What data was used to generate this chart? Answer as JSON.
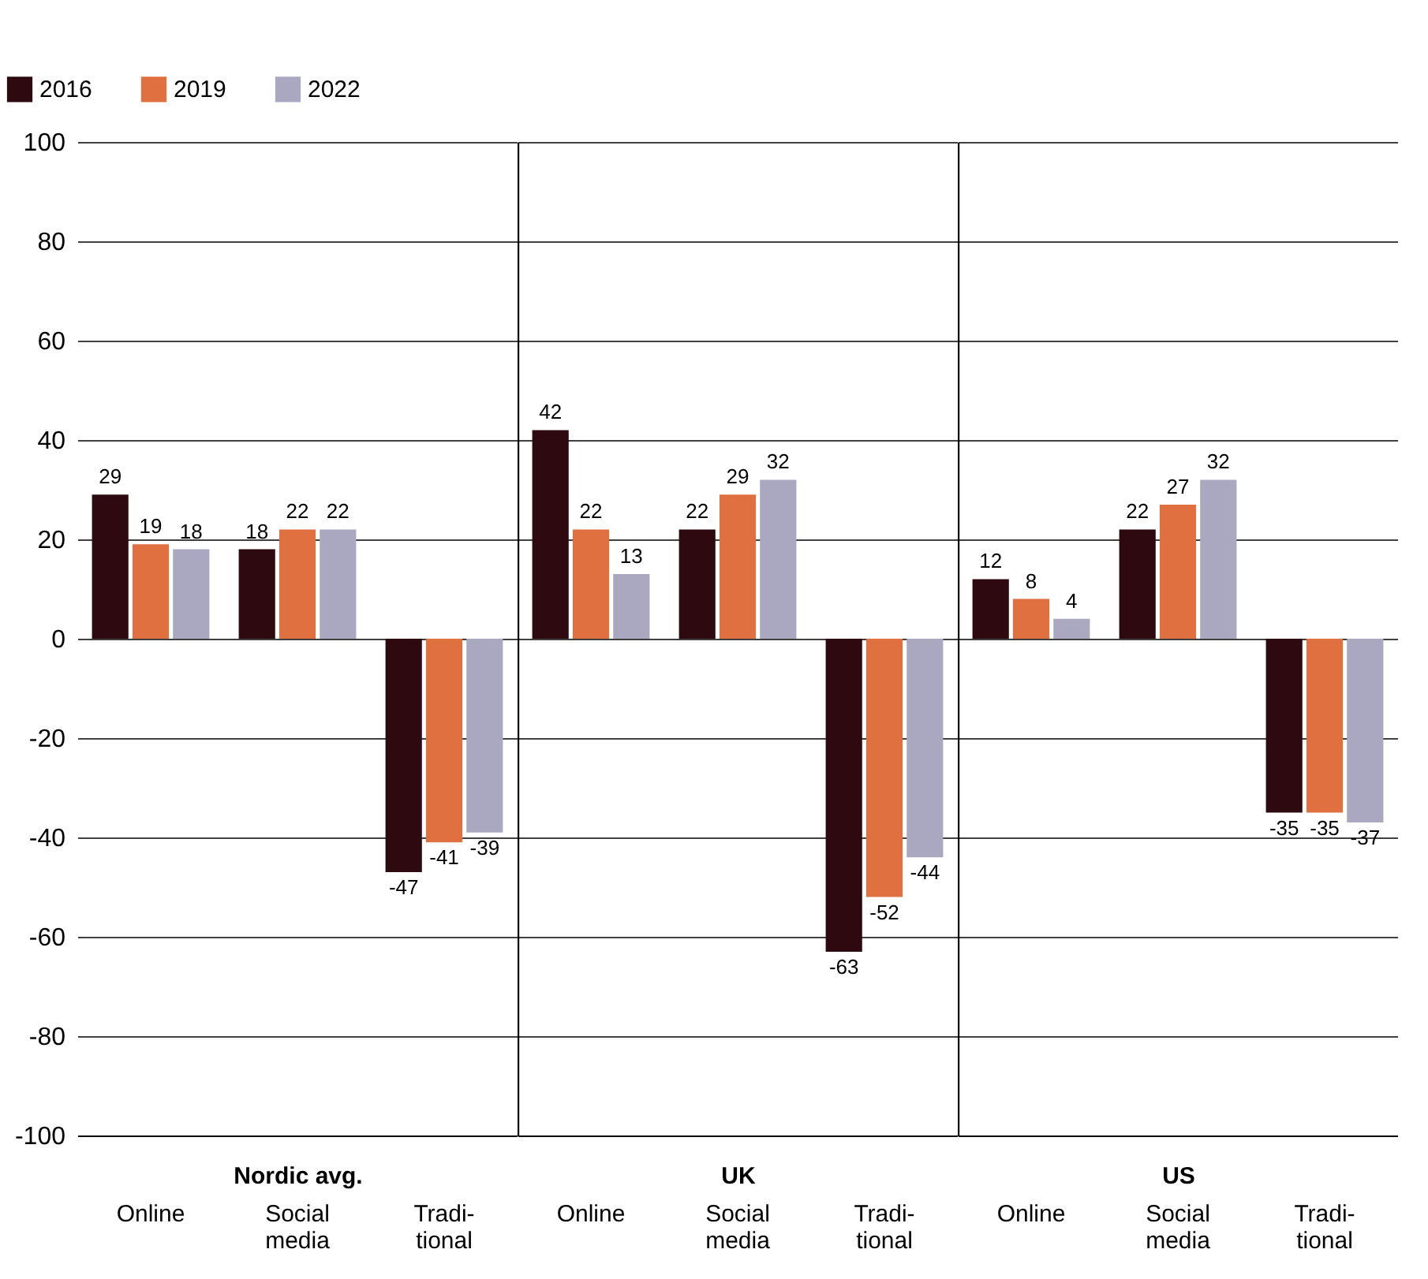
{
  "chart_data": [
    {
      "type": "bar",
      "xlabel": "Nordic avg.",
      "categories": [
        "Online",
        "Social media",
        "Tradi-tional"
      ],
      "series": [
        {
          "name": "2016",
          "color": "#2e0910",
          "values": [
            29,
            18,
            -47
          ]
        },
        {
          "name": "2019",
          "color": "#e0703f",
          "values": [
            19,
            22,
            -41
          ]
        },
        {
          "name": "2022",
          "color": "#aaa7c1",
          "values": [
            18,
            22,
            -39
          ]
        }
      ],
      "ylim": [
        -100,
        100
      ],
      "yticks": [
        -100,
        -80,
        -60,
        -40,
        -20,
        0,
        20,
        40,
        60,
        80,
        100
      ],
      "grid": "y",
      "data_labels": true,
      "legend": "top left"
    },
    {
      "type": "bar",
      "xlabel": "UK",
      "categories": [
        "Online",
        "Social media",
        "Tradi-tional"
      ],
      "series": [
        {
          "color": "#2e0910",
          "values": [
            42,
            22,
            -63
          ]
        },
        {
          "color": "#e0703f",
          "values": [
            22,
            29,
            -52
          ]
        },
        {
          "color": "#aaa7c1",
          "values": [
            13,
            32,
            -44
          ]
        }
      ],
      "ylim": [
        -100,
        100
      ],
      "yticks": [
        -100,
        -80,
        -60,
        -40,
        -20,
        0,
        20,
        40,
        60,
        80,
        100
      ],
      "grid": "y",
      "data_labels": true,
      "tick_labels": "x"
    },
    {
      "type": "bar",
      "xlabel": "US",
      "categories": [
        "Online",
        "Social media",
        "Tradi-tional"
      ],
      "series": [
        {
          "color": "#2e0910",
          "values": [
            12,
            22,
            -35
          ]
        },
        {
          "color": "#e0703f",
          "values": [
            8,
            27,
            -35
          ]
        },
        {
          "color": "#aaa7c1",
          "values": [
            4,
            32,
            -37
          ]
        }
      ],
      "ylim": [
        -100,
        100
      ],
      "yticks": [
        -100,
        -80,
        -60,
        -40,
        -20,
        0,
        20,
        40,
        60,
        80,
        100
      ],
      "grid": "y",
      "data_labels": true,
      "tick_labels": "x"
    }
  ]
}
